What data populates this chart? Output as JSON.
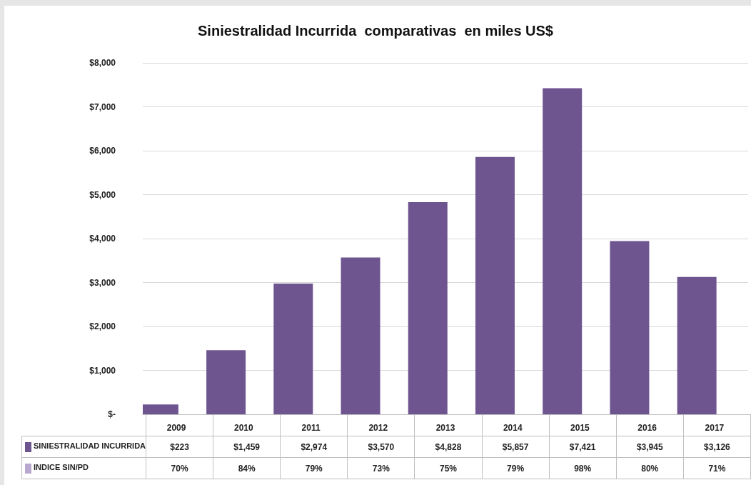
{
  "chart_data": {
    "type": "bar",
    "title": "Siniestralidad Incurrida  comparativas  en miles US$",
    "categories": [
      "2009",
      "2010",
      "2011",
      "2012",
      "2013",
      "2014",
      "2015",
      "2016",
      "2017"
    ],
    "series": [
      {
        "name": "SINIESTRALIDAD INCURRIDA",
        "color": "#6f5590",
        "values": [
          223,
          1459,
          2974,
          3570,
          4828,
          5857,
          7421,
          3945,
          3126
        ],
        "value_labels": [
          "$223",
          "$1,459",
          "$2,974",
          "$3,570",
          "$4,828",
          "$5,857",
          "$7,421",
          "$3,945",
          "$3,126"
        ]
      },
      {
        "name": "INDICE SIN/PD",
        "color": "#b9a7cf",
        "values": [
          0.7,
          0.84,
          0.79,
          0.73,
          0.75,
          0.79,
          0.98,
          0.8,
          0.71
        ],
        "value_labels": [
          "70%",
          "84%",
          "79%",
          "73%",
          "75%",
          "79%",
          "98%",
          "80%",
          "71%"
        ]
      }
    ],
    "ylim": [
      0,
      8000
    ],
    "yticks": [
      {
        "value": 0,
        "label": "$-"
      },
      {
        "value": 1000,
        "label": "$1,000"
      },
      {
        "value": 2000,
        "label": "$2,000"
      },
      {
        "value": 3000,
        "label": "$3,000"
      },
      {
        "value": 4000,
        "label": "$4,000"
      },
      {
        "value": 5000,
        "label": "$5,000"
      },
      {
        "value": 6000,
        "label": "$6,000"
      },
      {
        "value": 7000,
        "label": "$7,000"
      },
      {
        "value": 8000,
        "label": "$8,000"
      }
    ],
    "grid": "y",
    "legend": "bottom"
  }
}
